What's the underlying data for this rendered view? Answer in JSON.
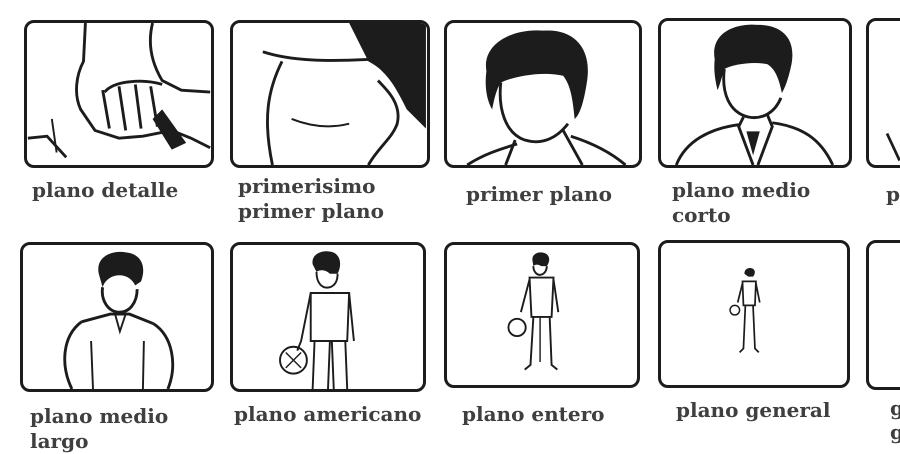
{
  "shots": [
    {
      "id": "plano-detalle",
      "label": "plano detalle"
    },
    {
      "id": "primerisimo-primer-plano",
      "label": "primerisimo\nprimer plano"
    },
    {
      "id": "primer-plano",
      "label": "primer plano"
    },
    {
      "id": "plano-medio-corto",
      "label": "plano medio\ncorto"
    },
    {
      "id": "partial-top",
      "label": "p"
    },
    {
      "id": "plano-medio-largo",
      "label": "plano medio\nlargo"
    },
    {
      "id": "plano-americano",
      "label": "plano americano"
    },
    {
      "id": "plano-entero",
      "label": "plano entero"
    },
    {
      "id": "plano-general",
      "label": "plano general"
    },
    {
      "id": "partial-bottom",
      "label": "g\ng"
    }
  ],
  "colors": {
    "ink": "#1c1c1c",
    "label": "#3f3f3f",
    "background": "#ffffff"
  }
}
